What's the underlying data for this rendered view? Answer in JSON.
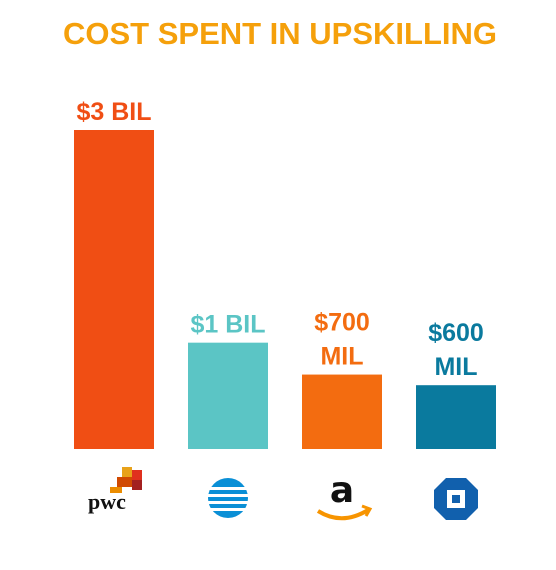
{
  "chart_data": {
    "type": "bar",
    "title": "COST SPENT IN UPSKILLING",
    "categories": [
      "pwc",
      null,
      "a",
      null
    ],
    "values": [
      3000000000,
      1000000000,
      700000000,
      600000000
    ],
    "value_labels": [
      "$3 BIL",
      "$1 BIL",
      "$700 MIL",
      "$600 MIL"
    ],
    "colors": [
      "#f04e14",
      "#5bc5c5",
      "#f36c10",
      "#0a7a9e"
    ],
    "title_color": "#f5a00b"
  }
}
